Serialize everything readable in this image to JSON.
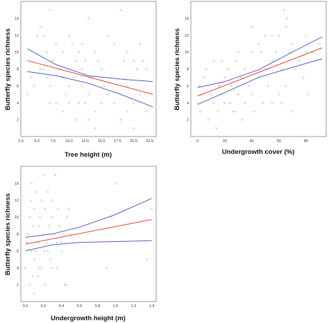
{
  "colors": {
    "points": "#7fd47f",
    "fit_line": "#e0403a",
    "ci_line": "#5558c4",
    "frame": "#555555"
  },
  "chart_data": [
    {
      "type": "scatter",
      "xlabel": "Tree height (m)",
      "ylabel": "Butterfly species richness",
      "xlim": [
        2.5,
        23.5
      ],
      "ylim": [
        0,
        16
      ],
      "xticks": [
        "2.5",
        "5.0",
        "7.5",
        "10.0",
        "12.5",
        "15.0",
        "17.5",
        "20.0",
        "22.5"
      ],
      "yticks": [
        "2",
        "4",
        "6",
        "8",
        "10",
        "12",
        "14"
      ],
      "grid": false,
      "points": [
        [
          5,
          12
        ],
        [
          5.5,
          13
        ],
        [
          6,
          12
        ],
        [
          7,
          15
        ],
        [
          6.5,
          10
        ],
        [
          5.5,
          8
        ],
        [
          7.5,
          9
        ],
        [
          8,
          11
        ],
        [
          9,
          10
        ],
        [
          8.5,
          8
        ],
        [
          10,
          12
        ],
        [
          10.5,
          11
        ],
        [
          11,
          9
        ],
        [
          11.5,
          10
        ],
        [
          12,
          11
        ],
        [
          12.5,
          9
        ],
        [
          13,
          14
        ],
        [
          14,
          10
        ],
        [
          14.5,
          9
        ],
        [
          15,
          8
        ],
        [
          16,
          12
        ],
        [
          17,
          11
        ],
        [
          18,
          15
        ],
        [
          18.5,
          9
        ],
        [
          19,
          10
        ],
        [
          20,
          9
        ],
        [
          20.5,
          8
        ],
        [
          21,
          11
        ],
        [
          21.5,
          9
        ],
        [
          22,
          8
        ],
        [
          3.5,
          5
        ],
        [
          4,
          7
        ],
        [
          4.5,
          6
        ],
        [
          6,
          8
        ],
        [
          7,
          4
        ],
        [
          8,
          4
        ],
        [
          9,
          7
        ],
        [
          9.5,
          5
        ],
        [
          10,
          4
        ],
        [
          11,
          7
        ],
        [
          11.5,
          4
        ],
        [
          12,
          6
        ],
        [
          12.5,
          4
        ],
        [
          13,
          5
        ],
        [
          13.5,
          7
        ],
        [
          14,
          3
        ],
        [
          15,
          4
        ],
        [
          15.5,
          6
        ],
        [
          16,
          5
        ],
        [
          17,
          4
        ],
        [
          18,
          2
        ],
        [
          19,
          3
        ],
        [
          20,
          4
        ],
        [
          21,
          5
        ],
        [
          22,
          3
        ],
        [
          20,
          1
        ],
        [
          13,
          2
        ],
        [
          7,
          6
        ],
        [
          6.5,
          7
        ],
        [
          10,
          6
        ],
        [
          12,
          8
        ],
        [
          15,
          7
        ],
        [
          19,
          6
        ],
        [
          9,
          3
        ],
        [
          11,
          2
        ],
        [
          14,
          1
        ]
      ],
      "fit_line": [
        [
          3.5,
          9.0
        ],
        [
          23,
          5.0
        ]
      ],
      "ci_upper": [
        [
          3.5,
          10.4
        ],
        [
          8,
          8.5
        ],
        [
          13,
          7.2
        ],
        [
          18,
          6.8
        ],
        [
          23,
          6.5
        ]
      ],
      "ci_lower": [
        [
          3.5,
          7.7
        ],
        [
          8,
          7.2
        ],
        [
          13,
          6.3
        ],
        [
          18,
          5.0
        ],
        [
          23,
          3.5
        ]
      ]
    },
    {
      "type": "scatter",
      "xlabel": "Undergrowth cover (%)",
      "ylabel": "Butterfly species richness",
      "xlim": [
        -5,
        95
      ],
      "ylim": [
        0,
        16
      ],
      "xticks": [
        "0",
        "20",
        "40",
        "60",
        "80"
      ],
      "yticks": [
        "2",
        "4",
        "6",
        "8",
        "10",
        "12",
        "14"
      ],
      "grid": false,
      "points": [
        [
          0,
          4
        ],
        [
          1,
          6
        ],
        [
          2,
          3
        ],
        [
          3,
          5
        ],
        [
          5,
          7
        ],
        [
          6,
          8
        ],
        [
          8,
          2
        ],
        [
          10,
          5
        ],
        [
          12,
          4
        ],
        [
          12,
          9
        ],
        [
          14,
          1
        ],
        [
          15,
          3
        ],
        [
          16,
          6
        ],
        [
          18,
          5
        ],
        [
          20,
          4
        ],
        [
          20,
          7
        ],
        [
          22,
          8
        ],
        [
          24,
          4
        ],
        [
          25,
          6
        ],
        [
          26,
          3
        ],
        [
          28,
          9
        ],
        [
          30,
          5
        ],
        [
          30,
          10
        ],
        [
          32,
          7
        ],
        [
          35,
          4
        ],
        [
          35,
          8
        ],
        [
          38,
          6
        ],
        [
          40,
          5
        ],
        [
          40,
          10
        ],
        [
          42,
          3
        ],
        [
          45,
          7
        ],
        [
          45,
          11
        ],
        [
          48,
          4
        ],
        [
          50,
          8
        ],
        [
          50,
          12
        ],
        [
          52,
          6
        ],
        [
          55,
          4
        ],
        [
          55,
          9
        ],
        [
          58,
          10
        ],
        [
          60,
          5
        ],
        [
          60,
          12
        ],
        [
          62,
          8
        ],
        [
          64,
          15
        ],
        [
          65,
          6
        ],
        [
          65,
          13
        ],
        [
          66,
          14
        ],
        [
          68,
          10
        ],
        [
          70,
          3
        ],
        [
          70,
          11
        ],
        [
          72,
          8
        ],
        [
          75,
          9
        ],
        [
          78,
          7
        ],
        [
          80,
          10
        ],
        [
          80,
          12
        ],
        [
          82,
          5
        ],
        [
          85,
          10
        ],
        [
          88,
          9
        ],
        [
          90,
          11
        ],
        [
          28,
          3
        ],
        [
          40,
          13
        ],
        [
          55,
          12
        ],
        [
          62,
          4
        ],
        [
          33,
          2
        ],
        [
          18,
          9
        ],
        [
          47,
          10
        ]
      ],
      "fit_line": [
        [
          0,
          4.8
        ],
        [
          92,
          10.5
        ]
      ],
      "ci_upper": [
        [
          0,
          5.8
        ],
        [
          20,
          6.5
        ],
        [
          45,
          7.9
        ],
        [
          70,
          10.0
        ],
        [
          92,
          11.8
        ]
      ],
      "ci_lower": [
        [
          0,
          3.8
        ],
        [
          20,
          5.2
        ],
        [
          45,
          7.0
        ],
        [
          70,
          8.2
        ],
        [
          92,
          9.2
        ]
      ]
    },
    {
      "type": "scatter",
      "xlabel": "Undergrowth height (m)",
      "ylabel": "Butterfly species richness",
      "xlim": [
        -0.05,
        1.45
      ],
      "ylim": [
        0,
        16
      ],
      "xticks": [
        "0.0",
        "0.2",
        "0.4",
        "0.6",
        "0.8",
        "1.0",
        "1.2",
        "1.4"
      ],
      "yticks": [
        "2",
        "4",
        "6",
        "8",
        "10",
        "12",
        "14"
      ],
      "grid": false,
      "points": [
        [
          0,
          4
        ],
        [
          0.02,
          7
        ],
        [
          0.03,
          8
        ],
        [
          0.05,
          10
        ],
        [
          0.06,
          12
        ],
        [
          0.07,
          14
        ],
        [
          0.08,
          9
        ],
        [
          0.1,
          5
        ],
        [
          0.1,
          11
        ],
        [
          0.12,
          6
        ],
        [
          0.12,
          13
        ],
        [
          0.13,
          7
        ],
        [
          0.14,
          3
        ],
        [
          0.15,
          9
        ],
        [
          0.16,
          10
        ],
        [
          0.18,
          12
        ],
        [
          0.18,
          4
        ],
        [
          0.2,
          8
        ],
        [
          0.2,
          15
        ],
        [
          0.21,
          6
        ],
        [
          0.22,
          11
        ],
        [
          0.24,
          7
        ],
        [
          0.25,
          13
        ],
        [
          0.26,
          9
        ],
        [
          0.28,
          5
        ],
        [
          0.3,
          10
        ],
        [
          0.3,
          12
        ],
        [
          0.32,
          8
        ],
        [
          0.33,
          15
        ],
        [
          0.35,
          7
        ],
        [
          0.36,
          11
        ],
        [
          0.38,
          9
        ],
        [
          0.4,
          6
        ],
        [
          0.42,
          8
        ],
        [
          0.44,
          2
        ],
        [
          0.46,
          10
        ],
        [
          0.48,
          11
        ],
        [
          0.5,
          8
        ],
        [
          0.05,
          2
        ],
        [
          0.08,
          3
        ],
        [
          0.1,
          1
        ],
        [
          0.15,
          4
        ],
        [
          0.22,
          2
        ],
        [
          0.3,
          4
        ],
        [
          0.45,
          2
        ],
        [
          0.95,
          10
        ],
        [
          1.0,
          14
        ],
        [
          0.9,
          4
        ],
        [
          1.35,
          5
        ],
        [
          1.4,
          11
        ],
        [
          0.25,
          6
        ],
        [
          0.35,
          4
        ],
        [
          0.15,
          7
        ],
        [
          0.4,
          7
        ],
        [
          0.06,
          6
        ]
      ],
      "fit_line": [
        [
          0,
          6.8
        ],
        [
          1.4,
          9.7
        ]
      ],
      "ci_upper": [
        [
          0,
          7.6
        ],
        [
          0.3,
          8.0
        ],
        [
          0.6,
          8.8
        ],
        [
          1.0,
          10.3
        ],
        [
          1.4,
          12.2
        ]
      ],
      "ci_lower": [
        [
          0,
          6.0
        ],
        [
          0.3,
          6.7
        ],
        [
          0.6,
          7.0
        ],
        [
          1.0,
          7.1
        ],
        [
          1.4,
          7.2
        ]
      ]
    }
  ]
}
